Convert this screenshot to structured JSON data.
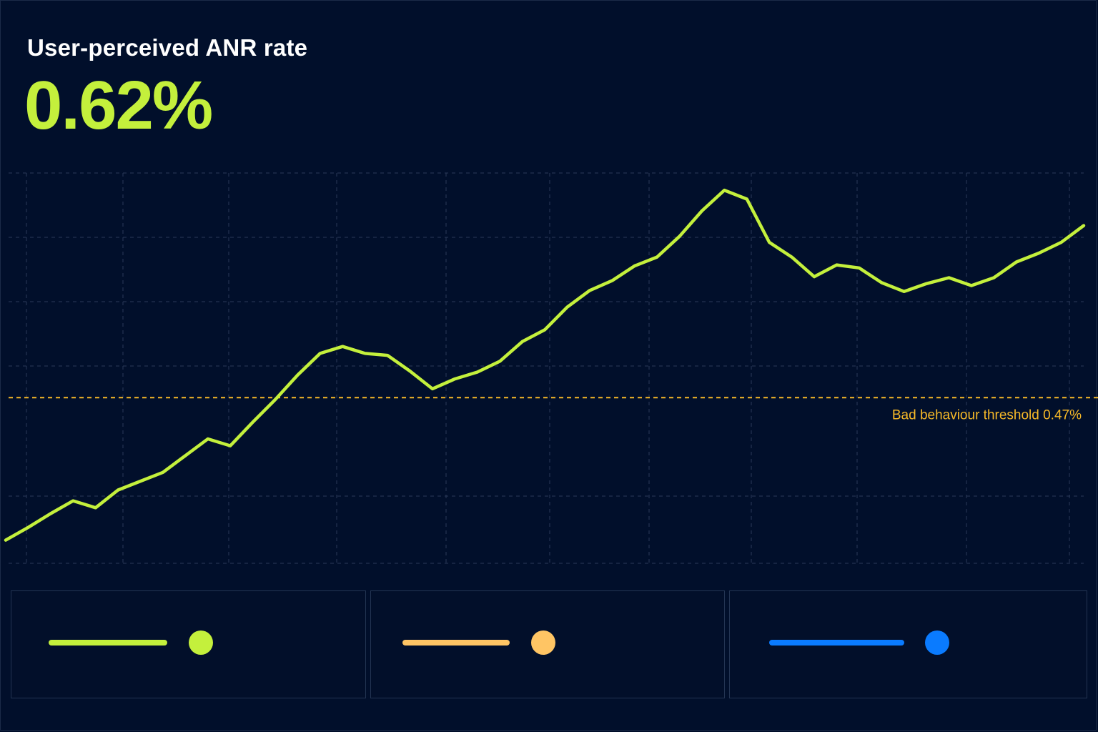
{
  "header": {
    "title": "User-perceived ANR rate",
    "value": "0.62%"
  },
  "colors": {
    "background": "#010f2b",
    "title": "#ffffff",
    "accent": "#c4f03c",
    "threshold": "#f7b928",
    "grid": "#2a3a58",
    "legend_1": "#c4f03c",
    "legend_2": "#ffc564",
    "legend_3": "#0a7bff"
  },
  "chart_data": {
    "type": "line",
    "title": "User-perceived ANR rate",
    "threshold": {
      "value": 0.47,
      "label": "Bad behaviour threshold 0.47%"
    },
    "ylim": [
      0.3,
      0.7
    ],
    "grid": true,
    "series": [
      {
        "values": [
          0.325,
          0.338,
          0.352,
          0.365,
          0.358,
          0.376,
          0.385,
          0.394,
          0.411,
          0.428,
          0.421,
          0.445,
          0.468,
          0.493,
          0.515,
          0.522,
          0.515,
          0.513,
          0.497,
          0.479,
          0.489,
          0.496,
          0.507,
          0.527,
          0.539,
          0.562,
          0.579,
          0.589,
          0.604,
          0.613,
          0.634,
          0.66,
          0.681,
          0.672,
          0.628,
          0.613,
          0.593,
          0.605,
          0.602,
          0.587,
          0.578,
          0.586,
          0.592,
          0.584,
          0.592,
          0.608,
          0.617,
          0.628,
          0.645
        ]
      }
    ],
    "legend": [
      {
        "color": "#c4f03c"
      },
      {
        "color": "#ffc564"
      },
      {
        "color": "#0a7bff"
      }
    ]
  }
}
